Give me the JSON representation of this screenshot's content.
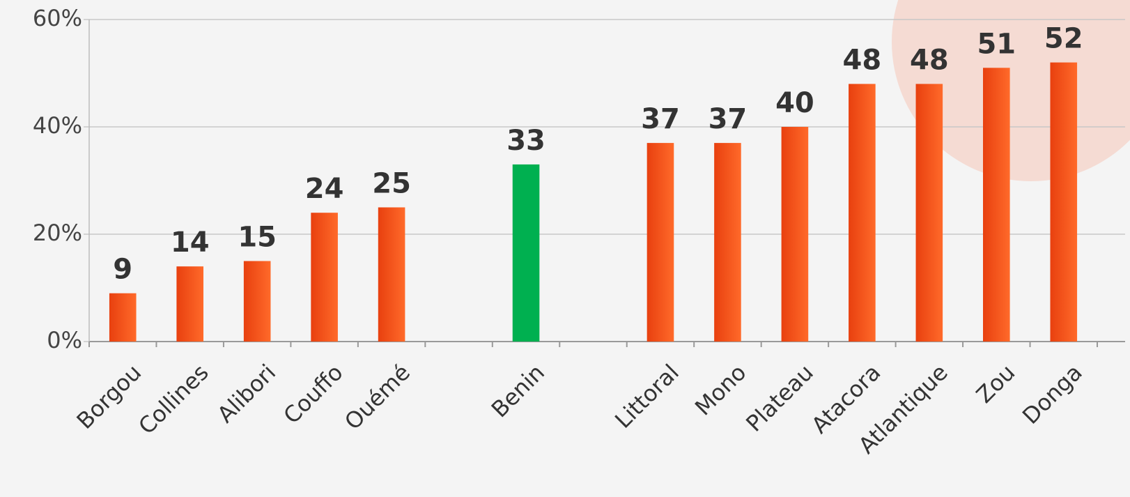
{
  "chart_data": {
    "type": "bar",
    "categories": [
      "Borgou",
      "Collines",
      "Alibori",
      "Couffo",
      "Ouémé",
      null,
      "Benin",
      null,
      "Littoral",
      "Mono",
      "Plateau",
      "Atacora",
      "Atlantique",
      "Zou",
      "Donga"
    ],
    "values": [
      9,
      14,
      15,
      24,
      25,
      null,
      33,
      null,
      37,
      37,
      40,
      48,
      48,
      51,
      52
    ],
    "colors": [
      "#f04a14",
      "#f04a14",
      "#f04a14",
      "#f04a14",
      "#f04a14",
      null,
      "#00b050",
      null,
      "#f04a14",
      "#f04a14",
      "#f04a14",
      "#f04a14",
      "#f04a14",
      "#f04a14",
      "#f04a14"
    ],
    "ylim": [
      0,
      60
    ],
    "yticks": [
      {
        "value": 0,
        "label": "0%"
      },
      {
        "value": 20,
        "label": "20%"
      },
      {
        "value": 40,
        "label": "40%"
      },
      {
        "value": 60,
        "label": "60%"
      }
    ],
    "grid": true
  }
}
